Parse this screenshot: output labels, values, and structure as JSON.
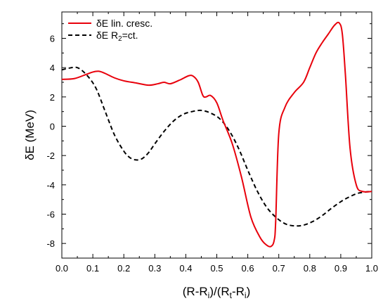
{
  "chart_data": {
    "type": "line",
    "xlabel_parts": [
      "(R-R",
      "i",
      ")/(R",
      "t",
      "-R",
      "i",
      ")"
    ],
    "ylabel_parts": [
      "δE (MeV)"
    ],
    "xlim": [
      0.0,
      1.0
    ],
    "ylim": [
      -9,
      7.8
    ],
    "xticks": [
      "0.0",
      "0.1",
      "0.2",
      "0.3",
      "0.4",
      "0.5",
      "0.6",
      "0.7",
      "0.8",
      "0.9",
      "1.0"
    ],
    "yticks": [
      "-8",
      "-6",
      "-4",
      "-2",
      "0",
      "2",
      "4",
      "6"
    ],
    "grid": false,
    "legend_position": "top-left",
    "series": [
      {
        "name_parts": [
          "δE lin. cresc."
        ],
        "color": "#e8000b",
        "dash": "solid",
        "x": [
          0.0,
          0.04,
          0.08,
          0.1,
          0.12,
          0.14,
          0.17,
          0.2,
          0.24,
          0.28,
          0.31,
          0.33,
          0.35,
          0.38,
          0.41,
          0.425,
          0.44,
          0.455,
          0.465,
          0.48,
          0.5,
          0.52,
          0.55,
          0.58,
          0.61,
          0.64,
          0.66,
          0.675,
          0.685,
          0.69,
          0.7,
          0.72,
          0.75,
          0.78,
          0.8,
          0.82,
          0.84,
          0.86,
          0.88,
          0.895,
          0.905,
          0.915,
          0.93,
          0.95,
          0.97,
          1.0
        ],
        "y": [
          3.2,
          3.25,
          3.55,
          3.7,
          3.75,
          3.6,
          3.3,
          3.1,
          2.95,
          2.8,
          2.9,
          3.0,
          2.9,
          3.15,
          3.45,
          3.4,
          3.0,
          2.1,
          2.0,
          2.1,
          1.6,
          0.4,
          -1.2,
          -3.5,
          -6.2,
          -7.6,
          -8.1,
          -8.2,
          -7.8,
          -6.5,
          -0.5,
          1.3,
          2.3,
          3.0,
          4.0,
          5.0,
          5.7,
          6.3,
          6.9,
          7.05,
          6.3,
          3.5,
          -1.5,
          -4.0,
          -4.45,
          -4.45
        ]
      },
      {
        "name_parts": [
          "δE R",
          "2",
          "=ct."
        ],
        "color": "#000000",
        "dash": "dashed",
        "x": [
          0.0,
          0.02,
          0.05,
          0.08,
          0.11,
          0.14,
          0.17,
          0.2,
          0.22,
          0.24,
          0.26,
          0.28,
          0.3,
          0.33,
          0.36,
          0.39,
          0.42,
          0.45,
          0.48,
          0.51,
          0.54,
          0.57,
          0.6,
          0.63,
          0.66,
          0.69,
          0.72,
          0.75,
          0.78,
          0.81,
          0.84,
          0.87,
          0.9,
          0.93,
          0.96,
          1.0
        ],
        "y": [
          3.85,
          3.95,
          4.0,
          3.5,
          2.6,
          1.0,
          -0.6,
          -1.7,
          -2.15,
          -2.3,
          -2.2,
          -1.8,
          -1.2,
          -0.35,
          0.35,
          0.8,
          1.0,
          1.08,
          0.9,
          0.5,
          -0.3,
          -1.5,
          -3.0,
          -4.4,
          -5.5,
          -6.2,
          -6.65,
          -6.8,
          -6.75,
          -6.5,
          -6.1,
          -5.6,
          -5.15,
          -4.8,
          -4.55,
          -4.45
        ]
      }
    ]
  }
}
